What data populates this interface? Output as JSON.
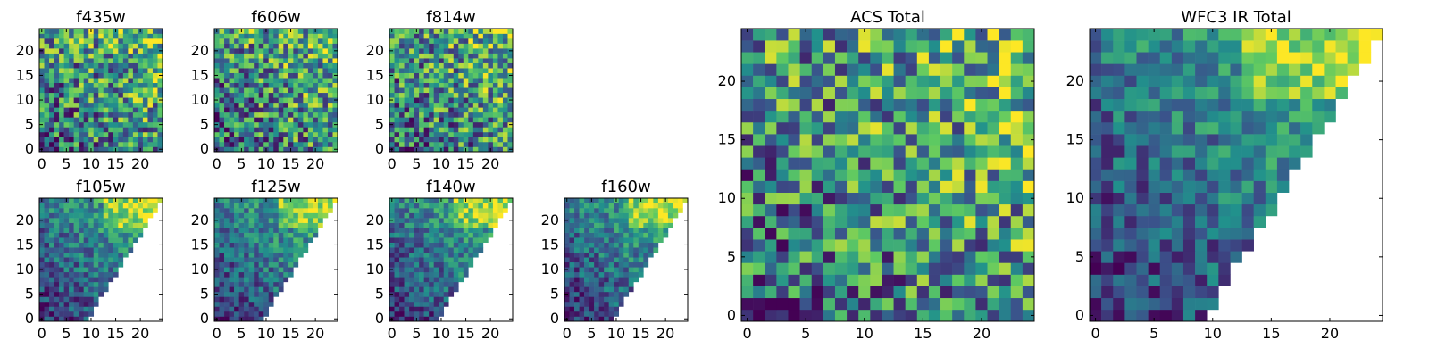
{
  "colormap": {
    "name": "viridis",
    "stops": [
      "#440154",
      "#3b528b",
      "#21918c",
      "#5ec962",
      "#fde725"
    ]
  },
  "chart_data": [
    {
      "type": "heatmap",
      "title": "f435w",
      "grid_size": 25,
      "mask": "none",
      "seed": 11,
      "xlim": [
        -0.5,
        24.5
      ],
      "ylim": [
        -0.5,
        24.5
      ],
      "xticks": [
        0,
        5,
        10,
        15,
        20
      ],
      "yticks": [
        0,
        5,
        10,
        15,
        20
      ],
      "value_range": [
        0,
        1
      ]
    },
    {
      "type": "heatmap",
      "title": "f606w",
      "grid_size": 25,
      "mask": "none",
      "seed": 23,
      "xlim": [
        -0.5,
        24.5
      ],
      "ylim": [
        -0.5,
        24.5
      ],
      "xticks": [
        0,
        5,
        10,
        15,
        20
      ],
      "yticks": [
        0,
        5,
        10,
        15,
        20
      ],
      "value_range": [
        0,
        1
      ]
    },
    {
      "type": "heatmap",
      "title": "f814w",
      "grid_size": 25,
      "mask": "none",
      "seed": 37,
      "xlim": [
        -0.5,
        24.5
      ],
      "ylim": [
        -0.5,
        24.5
      ],
      "xticks": [
        0,
        5,
        10,
        15,
        20
      ],
      "yticks": [
        0,
        5,
        10,
        15,
        20
      ],
      "value_range": [
        0,
        1
      ]
    },
    {
      "type": "heatmap",
      "title": "f105w",
      "grid_size": 25,
      "mask": "wedge",
      "seed": 41,
      "xlim": [
        -0.5,
        24.5
      ],
      "ylim": [
        -0.5,
        24.5
      ],
      "xticks": [
        0,
        5,
        10,
        15,
        20
      ],
      "yticks": [
        0,
        5,
        10,
        15,
        20
      ],
      "value_range": [
        0,
        1
      ]
    },
    {
      "type": "heatmap",
      "title": "f125w",
      "grid_size": 25,
      "mask": "wedge",
      "seed": 53,
      "xlim": [
        -0.5,
        24.5
      ],
      "ylim": [
        -0.5,
        24.5
      ],
      "xticks": [
        0,
        5,
        10,
        15,
        20
      ],
      "yticks": [
        0,
        5,
        10,
        15,
        20
      ],
      "value_range": [
        0,
        1
      ]
    },
    {
      "type": "heatmap",
      "title": "f140w",
      "grid_size": 25,
      "mask": "wedge",
      "seed": 67,
      "xlim": [
        -0.5,
        24.5
      ],
      "ylim": [
        -0.5,
        24.5
      ],
      "xticks": [
        0,
        5,
        10,
        15,
        20
      ],
      "yticks": [
        0,
        5,
        10,
        15,
        20
      ],
      "value_range": [
        0,
        1
      ]
    },
    {
      "type": "heatmap",
      "title": "f160w",
      "grid_size": 25,
      "mask": "wedge",
      "seed": 79,
      "xlim": [
        -0.5,
        24.5
      ],
      "ylim": [
        -0.5,
        24.5
      ],
      "xticks": [
        0,
        5,
        10,
        15,
        20
      ],
      "yticks": [
        0,
        5,
        10,
        15,
        20
      ],
      "value_range": [
        0,
        1
      ]
    },
    {
      "type": "heatmap",
      "title": "ACS Total",
      "grid_size": 25,
      "mask": "none",
      "seed": 97,
      "xlim": [
        -0.5,
        24.5
      ],
      "ylim": [
        -0.5,
        24.5
      ],
      "xticks": [
        0,
        5,
        10,
        15,
        20
      ],
      "yticks": [
        0,
        5,
        10,
        15,
        20
      ],
      "value_range": [
        0,
        1
      ]
    },
    {
      "type": "heatmap",
      "title": "WFC3 IR Total",
      "grid_size": 25,
      "mask": "wedge",
      "seed": 113,
      "xlim": [
        -0.5,
        24.5
      ],
      "ylim": [
        -0.5,
        24.5
      ],
      "xticks": [
        0,
        5,
        10,
        15,
        20
      ],
      "yticks": [
        0,
        5,
        10,
        15,
        20
      ],
      "value_range": [
        0,
        1
      ]
    }
  ]
}
